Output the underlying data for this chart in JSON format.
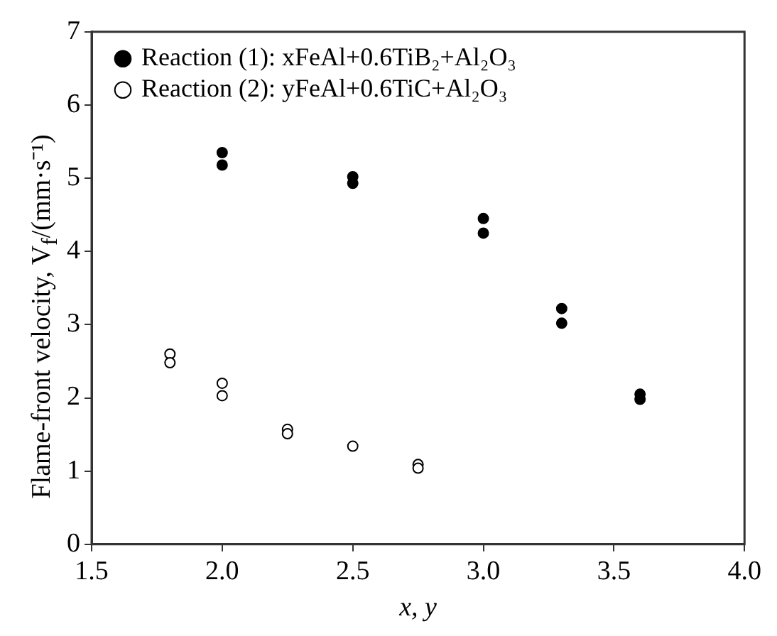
{
  "chart_data": {
    "type": "scatter",
    "xlabel": "x, y",
    "ylabel": "Flame-front velocity, V$_{f}$/(mm·s⁻¹)",
    "xlim": [
      1.5,
      4.0
    ],
    "xticks": [
      {
        "value": 1.5,
        "label": "1.5"
      },
      {
        "value": 2,
        "label": "2.0"
      },
      {
        "value": 2.5,
        "label": "2.5"
      },
      {
        "value": 3,
        "label": "3.0"
      },
      {
        "value": 3.5,
        "label": "3.5"
      },
      {
        "value": 4,
        "label": "4.0"
      }
    ],
    "ylim": [
      0,
      7
    ],
    "yticks": [
      0,
      1,
      2,
      3,
      4,
      5,
      6,
      7
    ],
    "grid": false,
    "legend": "top left",
    "marker": "circle",
    "series": [
      {
        "name": "Reaction (1): xFeAl+0.6TiB₂+Al₂O₃",
        "color": "#000000",
        "x": [
          2.0,
          2.0,
          2.5,
          2.5,
          3.0,
          3.0,
          3.3,
          3.3,
          3.6,
          3.6
        ],
        "values": [
          5.35,
          5.18,
          5.02,
          4.93,
          4.45,
          4.25,
          3.22,
          3.02,
          2.05,
          1.98
        ]
      },
      {
        "name": "Reaction (2): yFeAl+0.6TiC+Al₂O₃",
        "color": "#000000",
        "x": [
          1.8,
          1.8,
          2.0,
          2.0,
          2.25,
          2.25,
          2.5,
          2.75,
          2.75
        ],
        "values": [
          2.6,
          2.48,
          2.2,
          2.03,
          1.57,
          1.51,
          1.34,
          1.09,
          1.04
        ]
      }
    ]
  }
}
